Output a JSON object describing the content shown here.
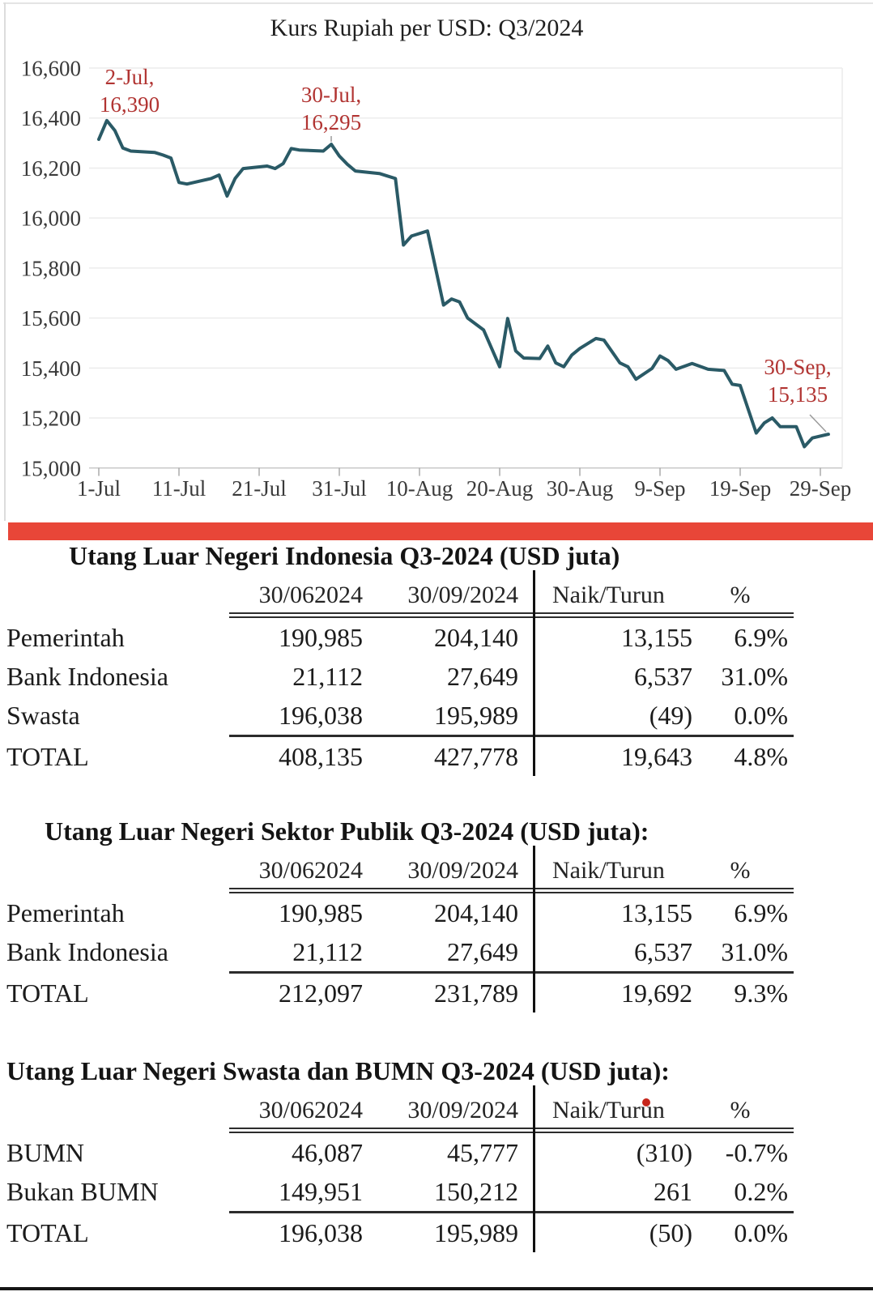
{
  "separator": {
    "color": "#e84638"
  },
  "bottom_rule_color": "#161616",
  "chart_data": {
    "type": "line",
    "title": "Kurs Rupiah per USD: Q3/2024",
    "xlabel": "",
    "ylabel": "",
    "ylim": [
      15000,
      16600
    ],
    "y_ticks": [
      15000,
      15200,
      15400,
      15600,
      15800,
      16000,
      16200,
      16400,
      16600
    ],
    "y_tick_labels": [
      "15,000",
      "15,200",
      "15,400",
      "15,600",
      "15,800",
      "16,000",
      "16,200",
      "16,400",
      "16,600"
    ],
    "x_ticks": [
      {
        "day": 0,
        "label": "1-Jul"
      },
      {
        "day": 10,
        "label": "11-Jul"
      },
      {
        "day": 20,
        "label": "21-Jul"
      },
      {
        "day": 30,
        "label": "31-Jul"
      },
      {
        "day": 40,
        "label": "10-Aug"
      },
      {
        "day": 50,
        "label": "20-Aug"
      },
      {
        "day": 60,
        "label": "30-Aug"
      },
      {
        "day": 70,
        "label": "9-Sep"
      },
      {
        "day": 80,
        "label": "19-Sep"
      },
      {
        "day": 90,
        "label": "29-Sep"
      }
    ],
    "grid": true,
    "legend": "none",
    "line_color": "#2a5a66",
    "annotation_color": "#b13432",
    "points": [
      [
        0,
        16315
      ],
      [
        1,
        16390
      ],
      [
        2,
        16350
      ],
      [
        3,
        16280
      ],
      [
        4,
        16268
      ],
      [
        7,
        16262
      ],
      [
        8,
        16252
      ],
      [
        9,
        16240
      ],
      [
        10,
        16142
      ],
      [
        11,
        16136
      ],
      [
        14,
        16158
      ],
      [
        15,
        16172
      ],
      [
        16,
        16088
      ],
      [
        17,
        16158
      ],
      [
        18,
        16198
      ],
      [
        21,
        16208
      ],
      [
        22,
        16198
      ],
      [
        23,
        16218
      ],
      [
        24,
        16278
      ],
      [
        25,
        16272
      ],
      [
        28,
        16268
      ],
      [
        29,
        16295
      ],
      [
        30,
        16248
      ],
      [
        31,
        16215
      ],
      [
        32,
        16188
      ],
      [
        35,
        16178
      ],
      [
        36,
        16168
      ],
      [
        37,
        16158
      ],
      [
        38,
        15892
      ],
      [
        39,
        15928
      ],
      [
        41,
        15948
      ],
      [
        43,
        15652
      ],
      [
        44,
        15676
      ],
      [
        45,
        15664
      ],
      [
        46,
        15600
      ],
      [
        48,
        15552
      ],
      [
        50,
        15405
      ],
      [
        51,
        15598
      ],
      [
        52,
        15468
      ],
      [
        53,
        15440
      ],
      [
        55,
        15438
      ],
      [
        56,
        15488
      ],
      [
        57,
        15420
      ],
      [
        58,
        15405
      ],
      [
        59,
        15452
      ],
      [
        60,
        15478
      ],
      [
        62,
        15518
      ],
      [
        63,
        15512
      ],
      [
        65,
        15420
      ],
      [
        66,
        15405
      ],
      [
        67,
        15355
      ],
      [
        69,
        15398
      ],
      [
        70,
        15448
      ],
      [
        71,
        15430
      ],
      [
        72,
        15395
      ],
      [
        74,
        15418
      ],
      [
        76,
        15395
      ],
      [
        78,
        15390
      ],
      [
        79,
        15335
      ],
      [
        80,
        15330
      ],
      [
        82,
        15140
      ],
      [
        83,
        15180
      ],
      [
        84,
        15200
      ],
      [
        85,
        15165
      ],
      [
        87,
        15165
      ],
      [
        88,
        15085
      ],
      [
        89,
        15120
      ],
      [
        91,
        15135
      ]
    ],
    "annotations": [
      {
        "lines": [
          "2-Jul,",
          "16,390"
        ],
        "day": 1,
        "value": 16390
      },
      {
        "lines": [
          "30-Jul,",
          "16,295"
        ],
        "day": 29,
        "value": 16295
      },
      {
        "lines": [
          "30-Sep,",
          "15,135"
        ],
        "day": 91,
        "value": 15135
      }
    ]
  },
  "tables": [
    {
      "title": "Utang Luar Negeri Indonesia Q3-2024 (USD juta)",
      "columns": [
        "30/062024",
        "30/09/2024",
        "Naik/Turun",
        "%"
      ],
      "rows": [
        {
          "label": "Pemerintah",
          "values": [
            "190,985",
            "204,140",
            "13,155",
            "6.9%"
          ],
          "total": false
        },
        {
          "label": "Bank Indonesia",
          "values": [
            "21,112",
            "27,649",
            "6,537",
            "31.0%"
          ],
          "total": false
        },
        {
          "label": "Swasta",
          "values": [
            "196,038",
            "195,989",
            "(49)",
            "0.0%"
          ],
          "total": false
        },
        {
          "label": "TOTAL",
          "values": [
            "408,135",
            "427,778",
            "19,643",
            "4.8%"
          ],
          "total": true
        }
      ]
    },
    {
      "title": "Utang Luar Negeri Sektor Publik Q3-2024 (USD juta):",
      "columns": [
        "30/062024",
        "30/09/2024",
        "Naik/Turun",
        "%"
      ],
      "rows": [
        {
          "label": "Pemerintah",
          "values": [
            "190,985",
            "204,140",
            "13,155",
            "6.9%"
          ],
          "total": false
        },
        {
          "label": "Bank Indonesia",
          "values": [
            "21,112",
            "27,649",
            "6,537",
            "31.0%"
          ],
          "total": false
        },
        {
          "label": "TOTAL",
          "values": [
            "212,097",
            "231,789",
            "19,692",
            "9.3%"
          ],
          "total": true
        }
      ]
    },
    {
      "title": "Utang Luar Negeri Swasta dan BUMN Q3-2024 (USD juta):",
      "red_dot_color": "#c6251b",
      "columns": [
        "30/062024",
        "30/09/2024",
        "Naik/Turun",
        "%"
      ],
      "rows": [
        {
          "label": "BUMN",
          "values": [
            "46,087",
            "45,777",
            "(310)",
            "-0.7%"
          ],
          "total": false
        },
        {
          "label": "Bukan BUMN",
          "values": [
            "149,951",
            "150,212",
            "261",
            "0.2%"
          ],
          "total": false
        },
        {
          "label": "TOTAL",
          "values": [
            "196,038",
            "195,989",
            "(50)",
            "0.0%"
          ],
          "total": true
        }
      ]
    }
  ]
}
